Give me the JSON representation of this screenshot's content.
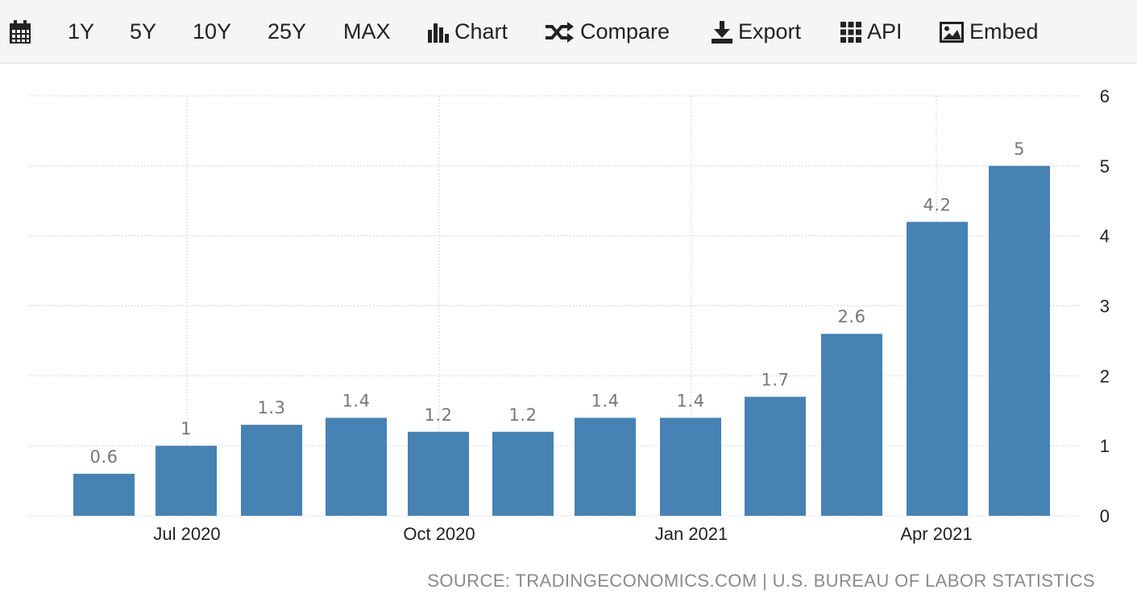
{
  "toolbar": {
    "ranges": [
      "1Y",
      "5Y",
      "10Y",
      "25Y",
      "MAX"
    ],
    "chart_label": "Chart",
    "compare_label": "Compare",
    "export_label": "Export",
    "api_label": "API",
    "embed_label": "Embed",
    "icons": [
      "calendar-icon",
      "bar-chart-icon",
      "shuffle-icon",
      "download-icon",
      "grid-icon",
      "image-icon"
    ]
  },
  "source": "SOURCE: TRADINGECONOMICS.COM | U.S. BUREAU OF LABOR STATISTICS",
  "colors": {
    "bar": "#4682b4",
    "grid": "#c8c8c8",
    "label": "#777777",
    "axis_text": "#222222"
  },
  "chart_data": {
    "type": "bar",
    "categories": [
      "2020-06",
      "2020-07",
      "2020-08",
      "2020-09",
      "2020-10",
      "2020-11",
      "2020-12",
      "2021-01",
      "2021-02",
      "2021-03",
      "2021-04",
      "2021-05"
    ],
    "values": [
      0.6,
      1,
      1.3,
      1.4,
      1.2,
      1.2,
      1.4,
      1.4,
      1.7,
      2.6,
      4.2,
      5
    ],
    "data_labels": [
      "0.6",
      "1",
      "1.3",
      "1.4",
      "1.2",
      "1.2",
      "1.4",
      "1.4",
      "1.7",
      "2.6",
      "4.2",
      "5"
    ],
    "x_tick_labels": [
      {
        "category": "2020-07",
        "label": "Jul 2020"
      },
      {
        "category": "2020-10",
        "label": "Oct 2020"
      },
      {
        "category": "2021-01",
        "label": "Jan 2021"
      },
      {
        "category": "2021-04",
        "label": "Apr 2021"
      }
    ],
    "y_ticks": [
      0,
      1,
      2,
      3,
      4,
      5,
      6
    ],
    "ylim": [
      0,
      6
    ],
    "y_axis_side": "right",
    "grid": true,
    "title": "",
    "xlabel": "",
    "ylabel": ""
  }
}
